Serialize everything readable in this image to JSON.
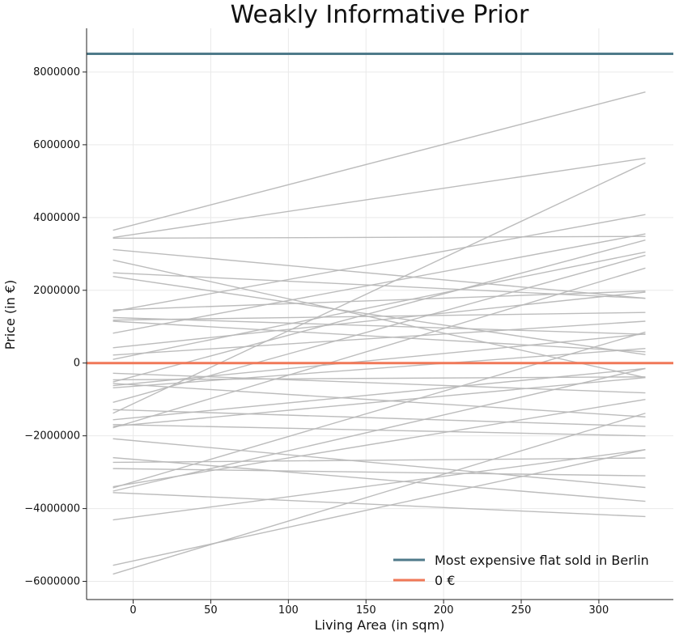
{
  "chart_data": {
    "type": "line",
    "title": "Weakly Informative Prior",
    "xlabel": "Living Area (in sqm)",
    "ylabel": "Price (in €)",
    "xlim": [
      -30,
      348
    ],
    "ylim": [
      -6500000,
      9200000
    ],
    "x_ticks": [
      0,
      50,
      100,
      150,
      200,
      250,
      300
    ],
    "x_tick_labels": [
      "0",
      "50",
      "100",
      "150",
      "200",
      "250",
      "300"
    ],
    "y_ticks": [
      -6000000,
      -4000000,
      -2000000,
      0,
      2000000,
      4000000,
      6000000,
      8000000
    ],
    "y_tick_labels": [
      "−6000000",
      "−4000000",
      "−2000000",
      "0",
      "2000000",
      "4000000",
      "6000000",
      "8000000"
    ],
    "grid": true,
    "legend_position": "bottom-right",
    "reference_lines": [
      {
        "name": "Most expensive flat sold in Berlin",
        "y": 8500000,
        "color": "#4f7a8a"
      },
      {
        "name": "0 €",
        "y": 0,
        "color": "#f07858"
      }
    ],
    "prior_lines_x": [
      -13,
      330
    ],
    "prior_lines": [
      [
        3650000,
        7450000
      ],
      [
        3450000,
        5630000
      ],
      [
        3430000,
        3480000
      ],
      [
        3120000,
        1780000
      ],
      [
        2830000,
        -400000
      ],
      [
        2480000,
        1780000
      ],
      [
        2380000,
        230000
      ],
      [
        1460000,
        1980000
      ],
      [
        1420000,
        4080000
      ],
      [
        1250000,
        790000
      ],
      [
        1180000,
        1390000
      ],
      [
        1150000,
        310000
      ],
      [
        820000,
        3550000
      ],
      [
        420000,
        1950000
      ],
      [
        220000,
        1150000
      ],
      [
        100000,
        3050000
      ],
      [
        -280000,
        -820000
      ],
      [
        -460000,
        -380000
      ],
      [
        -520000,
        3380000
      ],
      [
        -560000,
        -1480000
      ],
      [
        -620000,
        800000
      ],
      [
        -680000,
        400000
      ],
      [
        -1080000,
        2960000
      ],
      [
        -1280000,
        -1740000
      ],
      [
        -1380000,
        5500000
      ],
      [
        -1560000,
        -150000
      ],
      [
        -1690000,
        -2000000
      ],
      [
        -1740000,
        -400000
      ],
      [
        -1780000,
        2610000
      ],
      [
        -2080000,
        -3420000
      ],
      [
        -2600000,
        -3800000
      ],
      [
        -2730000,
        -2610000
      ],
      [
        -2900000,
        -3100000
      ],
      [
        -3400000,
        -1000000
      ],
      [
        -3430000,
        850000
      ],
      [
        -3520000,
        -150000
      ],
      [
        -3560000,
        -4220000
      ],
      [
        -4310000,
        -2380000
      ],
      [
        -5560000,
        -2380000
      ],
      [
        -5800000,
        -1380000
      ]
    ],
    "prior_line_color": "#b8b8b8",
    "legend": [
      {
        "label": "Most expensive flat sold in Berlin",
        "color": "#4f7a8a"
      },
      {
        "label": "0 €",
        "color": "#f07858"
      }
    ]
  }
}
